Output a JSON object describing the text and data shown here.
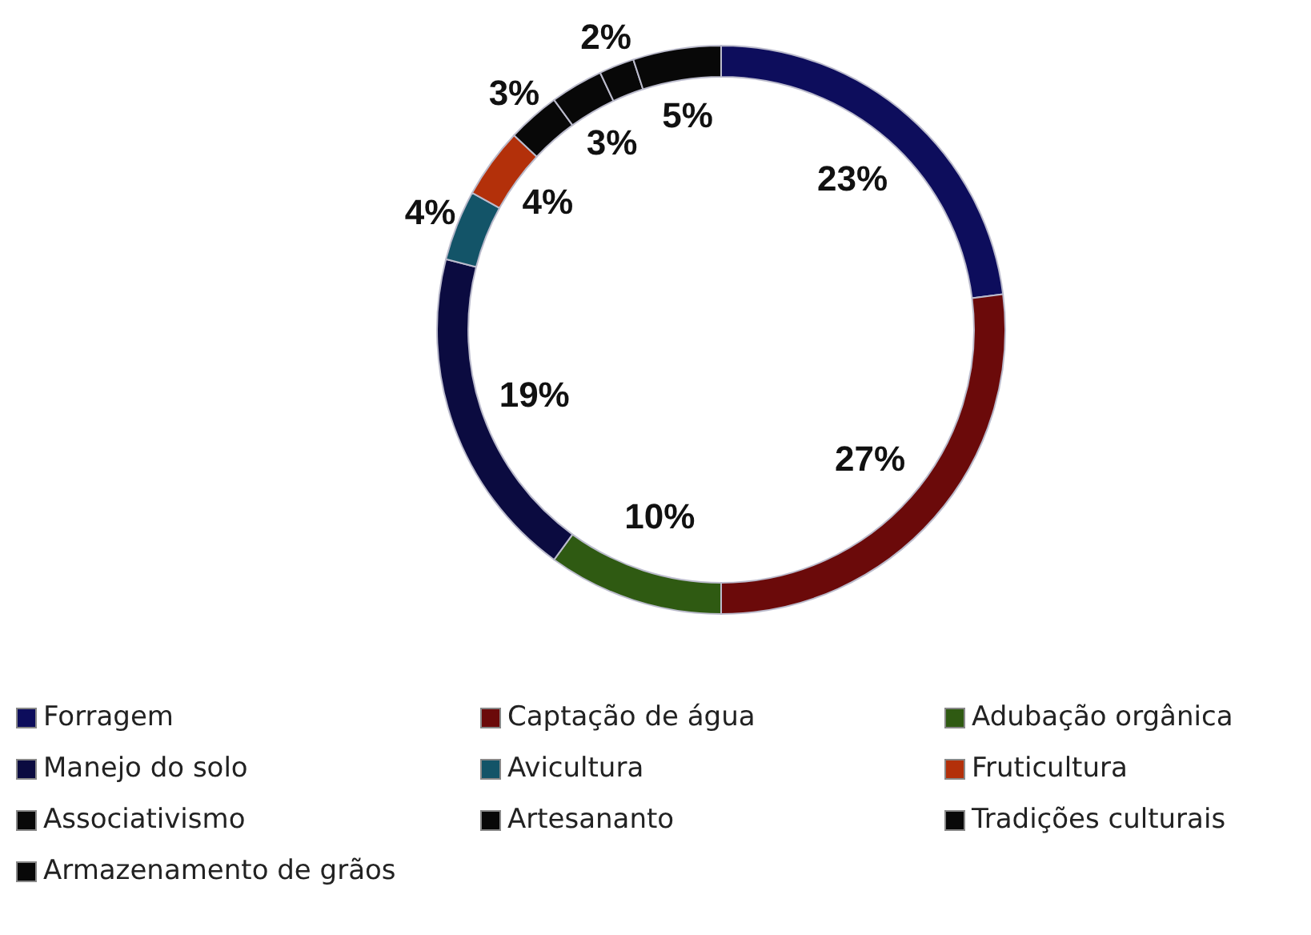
{
  "chart_data": {
    "type": "donut",
    "categories": [
      "Forragem",
      "Captação de água",
      "Adubação orgânica",
      "Manejo do solo",
      "Avicultura",
      "Fruticultura",
      "Associativismo",
      "Artesananto",
      "Tradições culturais",
      "Armazenamento de grãos"
    ],
    "values": [
      23,
      27,
      10,
      19,
      4,
      4,
      3,
      3,
      2,
      5
    ],
    "colors": [
      "#0d0d5c",
      "#6b0a0a",
      "#2f5a12",
      "#0b0b40",
      "#135468",
      "#b3300a",
      "#080808",
      "#080808",
      "#080808",
      "#080808"
    ],
    "value_labels": [
      "23%",
      "27%",
      "10%",
      "19%",
      "4%",
      "4%",
      "3%",
      "3%",
      "2%",
      "5%"
    ],
    "legend": "bottom"
  }
}
